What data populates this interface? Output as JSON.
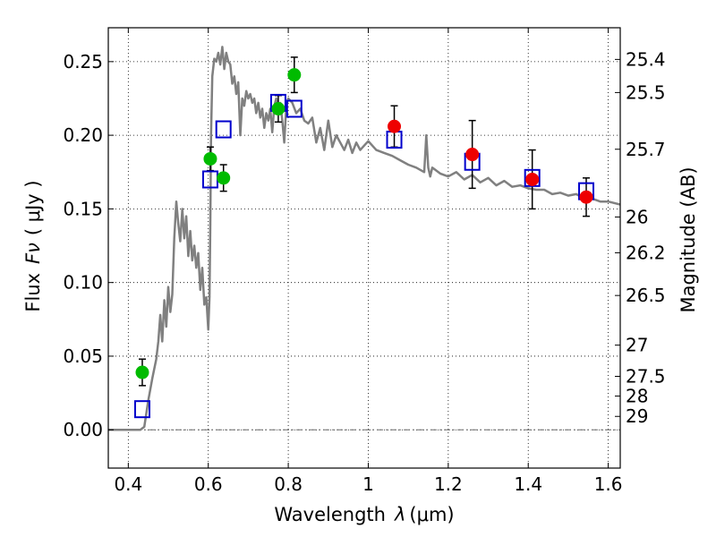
{
  "chart_data": {
    "type": "scatter",
    "xlabel_text": "Wavelength",
    "xlabel_symbol": "λ",
    "xlabel_unit": "(μm)",
    "ylabel_text": "Flux",
    "ylabel_symbol": "Fν",
    "ylabel_unit": "( μJy )",
    "y2label": "Magnitude (AB)",
    "xlim": [
      0.35,
      1.63
    ],
    "ylim": [
      -0.026,
      0.273
    ],
    "grid": true,
    "x_ticks": [
      0.4,
      0.6,
      0.8,
      1.0,
      1.2,
      1.4,
      1.6
    ],
    "x_tick_labels": [
      "0.4",
      "0.6",
      "0.8",
      "1",
      "1.2",
      "1.4",
      "1.6"
    ],
    "y_ticks": [
      0.0,
      0.05,
      0.1,
      0.15,
      0.2,
      0.25
    ],
    "y_tick_labels": [
      "0.00",
      "0.05",
      "0.10",
      "0.15",
      "0.20",
      "0.25"
    ],
    "y2_ticks": [
      {
        "label": "25.4",
        "flux": 0.2515
      },
      {
        "label": "25.5",
        "flux": 0.229
      },
      {
        "label": "25.7",
        "flux": 0.1905
      },
      {
        "label": "26",
        "flux": 0.1445
      },
      {
        "label": "26.2",
        "flux": 0.1202
      },
      {
        "label": "26.5",
        "flux": 0.0912
      },
      {
        "label": "27",
        "flux": 0.0575
      },
      {
        "label": "27.5",
        "flux": 0.0363
      },
      {
        "label": "28",
        "flux": 0.0229
      },
      {
        "label": "29",
        "flux": 0.0091
      }
    ],
    "colors": {
      "model": "#808080",
      "green_points": "#00bb00",
      "red_points": "#ee0000",
      "model_squares": "#0000cc",
      "errorbars": "#000000",
      "zero_line": "#555555"
    },
    "series": [
      {
        "marker": "line",
        "x": [
          0.35,
          0.43,
          0.44,
          0.45,
          0.46,
          0.47,
          0.475,
          0.48,
          0.485,
          0.49,
          0.495,
          0.5,
          0.505,
          0.51,
          0.515,
          0.52,
          0.525,
          0.53,
          0.535,
          0.54,
          0.545,
          0.55,
          0.555,
          0.56,
          0.565,
          0.57,
          0.575,
          0.58,
          0.585,
          0.59,
          0.595,
          0.6,
          0.603,
          0.605,
          0.607,
          0.61,
          0.615,
          0.62,
          0.625,
          0.63,
          0.635,
          0.64,
          0.645,
          0.65,
          0.655,
          0.66,
          0.665,
          0.67,
          0.675,
          0.68,
          0.685,
          0.69,
          0.695,
          0.7,
          0.705,
          0.71,
          0.715,
          0.72,
          0.725,
          0.73,
          0.735,
          0.74,
          0.745,
          0.75,
          0.755,
          0.76,
          0.765,
          0.77,
          0.775,
          0.78,
          0.785,
          0.79,
          0.795,
          0.8,
          0.81,
          0.82,
          0.83,
          0.84,
          0.85,
          0.86,
          0.87,
          0.88,
          0.89,
          0.9,
          0.91,
          0.92,
          0.93,
          0.94,
          0.95,
          0.96,
          0.97,
          0.98,
          0.99,
          1.0,
          1.02,
          1.04,
          1.06,
          1.08,
          1.1,
          1.12,
          1.14,
          1.145,
          1.15,
          1.155,
          1.16,
          1.18,
          1.2,
          1.22,
          1.24,
          1.26,
          1.28,
          1.3,
          1.32,
          1.34,
          1.36,
          1.38,
          1.4,
          1.42,
          1.44,
          1.46,
          1.48,
          1.5,
          1.52,
          1.54,
          1.56,
          1.58,
          1.6,
          1.63
        ],
        "y": [
          0.0,
          0.0,
          0.002,
          0.02,
          0.035,
          0.048,
          0.06,
          0.078,
          0.06,
          0.088,
          0.07,
          0.097,
          0.08,
          0.092,
          0.13,
          0.155,
          0.14,
          0.128,
          0.15,
          0.13,
          0.145,
          0.118,
          0.135,
          0.115,
          0.125,
          0.11,
          0.12,
          0.095,
          0.11,
          0.085,
          0.09,
          0.068,
          0.09,
          0.14,
          0.2,
          0.24,
          0.252,
          0.25,
          0.256,
          0.248,
          0.26,
          0.245,
          0.256,
          0.25,
          0.248,
          0.235,
          0.24,
          0.228,
          0.236,
          0.2,
          0.225,
          0.22,
          0.23,
          0.225,
          0.228,
          0.222,
          0.225,
          0.215,
          0.222,
          0.212,
          0.218,
          0.205,
          0.215,
          0.21,
          0.218,
          0.202,
          0.22,
          0.225,
          0.218,
          0.222,
          0.21,
          0.195,
          0.22,
          0.225,
          0.222,
          0.215,
          0.218,
          0.21,
          0.208,
          0.212,
          0.195,
          0.205,
          0.19,
          0.21,
          0.192,
          0.2,
          0.195,
          0.19,
          0.197,
          0.188,
          0.195,
          0.19,
          0.193,
          0.196,
          0.19,
          0.188,
          0.186,
          0.183,
          0.18,
          0.178,
          0.175,
          0.2,
          0.178,
          0.172,
          0.178,
          0.174,
          0.172,
          0.175,
          0.17,
          0.173,
          0.168,
          0.171,
          0.166,
          0.169,
          0.165,
          0.166,
          0.164,
          0.163,
          0.163,
          0.16,
          0.161,
          0.159,
          0.16,
          0.157,
          0.157,
          0.155,
          0.155,
          0.153
        ]
      },
      {
        "marker": "circle",
        "x": [
          0.435,
          0.605,
          0.638,
          0.775,
          0.815
        ],
        "y": [
          0.039,
          0.184,
          0.171,
          0.218,
          0.241
        ],
        "yerr": [
          0.009,
          0.008,
          0.009,
          0.009,
          0.012
        ]
      },
      {
        "marker": "circle",
        "x": [
          1.065,
          1.26,
          1.41,
          1.545
        ],
        "y": [
          0.206,
          0.187,
          0.17,
          0.158
        ],
        "yerr": [
          0.014,
          0.023,
          0.02,
          0.013
        ]
      },
      {
        "marker": "square",
        "x": [
          0.435,
          0.605,
          0.638,
          0.775,
          0.815,
          1.065,
          1.26,
          1.41,
          1.545
        ],
        "y": [
          0.014,
          0.17,
          0.204,
          0.222,
          0.218,
          0.197,
          0.182,
          0.171,
          0.162
        ]
      }
    ]
  }
}
